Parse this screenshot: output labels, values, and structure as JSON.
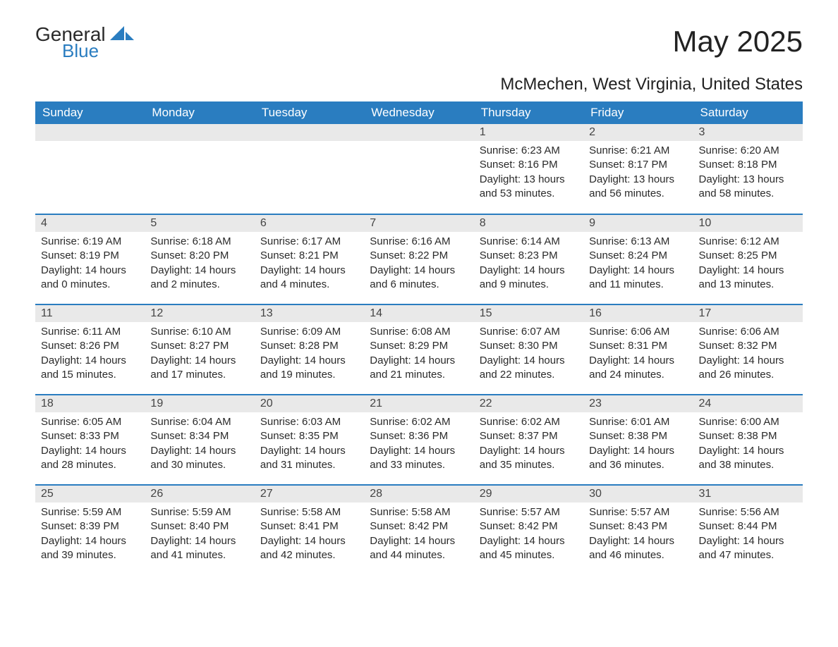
{
  "brand": {
    "word1": "General",
    "word2": "Blue"
  },
  "title": "May 2025",
  "location": "McMechen, West Virginia, United States",
  "colors": {
    "header_bg": "#2a7dc0",
    "header_text": "#ffffff",
    "daynum_bg": "#e9e9e9",
    "row_divider": "#2a7dc0",
    "body_text": "#2a2a2a",
    "page_bg": "#ffffff",
    "logo_accent": "#2a7dc0"
  },
  "fonts": {
    "title_size_pt": 42,
    "subtitle_size_pt": 24,
    "header_size_pt": 17,
    "body_size_pt": 15
  },
  "weekdays": [
    "Sunday",
    "Monday",
    "Tuesday",
    "Wednesday",
    "Thursday",
    "Friday",
    "Saturday"
  ],
  "weeks": [
    [
      null,
      null,
      null,
      null,
      {
        "n": "1",
        "sunrise": "6:23 AM",
        "sunset": "8:16 PM",
        "daylight": "13 hours and 53 minutes."
      },
      {
        "n": "2",
        "sunrise": "6:21 AM",
        "sunset": "8:17 PM",
        "daylight": "13 hours and 56 minutes."
      },
      {
        "n": "3",
        "sunrise": "6:20 AM",
        "sunset": "8:18 PM",
        "daylight": "13 hours and 58 minutes."
      }
    ],
    [
      {
        "n": "4",
        "sunrise": "6:19 AM",
        "sunset": "8:19 PM",
        "daylight": "14 hours and 0 minutes."
      },
      {
        "n": "5",
        "sunrise": "6:18 AM",
        "sunset": "8:20 PM",
        "daylight": "14 hours and 2 minutes."
      },
      {
        "n": "6",
        "sunrise": "6:17 AM",
        "sunset": "8:21 PM",
        "daylight": "14 hours and 4 minutes."
      },
      {
        "n": "7",
        "sunrise": "6:16 AM",
        "sunset": "8:22 PM",
        "daylight": "14 hours and 6 minutes."
      },
      {
        "n": "8",
        "sunrise": "6:14 AM",
        "sunset": "8:23 PM",
        "daylight": "14 hours and 9 minutes."
      },
      {
        "n": "9",
        "sunrise": "6:13 AM",
        "sunset": "8:24 PM",
        "daylight": "14 hours and 11 minutes."
      },
      {
        "n": "10",
        "sunrise": "6:12 AM",
        "sunset": "8:25 PM",
        "daylight": "14 hours and 13 minutes."
      }
    ],
    [
      {
        "n": "11",
        "sunrise": "6:11 AM",
        "sunset": "8:26 PM",
        "daylight": "14 hours and 15 minutes."
      },
      {
        "n": "12",
        "sunrise": "6:10 AM",
        "sunset": "8:27 PM",
        "daylight": "14 hours and 17 minutes."
      },
      {
        "n": "13",
        "sunrise": "6:09 AM",
        "sunset": "8:28 PM",
        "daylight": "14 hours and 19 minutes."
      },
      {
        "n": "14",
        "sunrise": "6:08 AM",
        "sunset": "8:29 PM",
        "daylight": "14 hours and 21 minutes."
      },
      {
        "n": "15",
        "sunrise": "6:07 AM",
        "sunset": "8:30 PM",
        "daylight": "14 hours and 22 minutes."
      },
      {
        "n": "16",
        "sunrise": "6:06 AM",
        "sunset": "8:31 PM",
        "daylight": "14 hours and 24 minutes."
      },
      {
        "n": "17",
        "sunrise": "6:06 AM",
        "sunset": "8:32 PM",
        "daylight": "14 hours and 26 minutes."
      }
    ],
    [
      {
        "n": "18",
        "sunrise": "6:05 AM",
        "sunset": "8:33 PM",
        "daylight": "14 hours and 28 minutes."
      },
      {
        "n": "19",
        "sunrise": "6:04 AM",
        "sunset": "8:34 PM",
        "daylight": "14 hours and 30 minutes."
      },
      {
        "n": "20",
        "sunrise": "6:03 AM",
        "sunset": "8:35 PM",
        "daylight": "14 hours and 31 minutes."
      },
      {
        "n": "21",
        "sunrise": "6:02 AM",
        "sunset": "8:36 PM",
        "daylight": "14 hours and 33 minutes."
      },
      {
        "n": "22",
        "sunrise": "6:02 AM",
        "sunset": "8:37 PM",
        "daylight": "14 hours and 35 minutes."
      },
      {
        "n": "23",
        "sunrise": "6:01 AM",
        "sunset": "8:38 PM",
        "daylight": "14 hours and 36 minutes."
      },
      {
        "n": "24",
        "sunrise": "6:00 AM",
        "sunset": "8:38 PM",
        "daylight": "14 hours and 38 minutes."
      }
    ],
    [
      {
        "n": "25",
        "sunrise": "5:59 AM",
        "sunset": "8:39 PM",
        "daylight": "14 hours and 39 minutes."
      },
      {
        "n": "26",
        "sunrise": "5:59 AM",
        "sunset": "8:40 PM",
        "daylight": "14 hours and 41 minutes."
      },
      {
        "n": "27",
        "sunrise": "5:58 AM",
        "sunset": "8:41 PM",
        "daylight": "14 hours and 42 minutes."
      },
      {
        "n": "28",
        "sunrise": "5:58 AM",
        "sunset": "8:42 PM",
        "daylight": "14 hours and 44 minutes."
      },
      {
        "n": "29",
        "sunrise": "5:57 AM",
        "sunset": "8:42 PM",
        "daylight": "14 hours and 45 minutes."
      },
      {
        "n": "30",
        "sunrise": "5:57 AM",
        "sunset": "8:43 PM",
        "daylight": "14 hours and 46 minutes."
      },
      {
        "n": "31",
        "sunrise": "5:56 AM",
        "sunset": "8:44 PM",
        "daylight": "14 hours and 47 minutes."
      }
    ]
  ],
  "labels": {
    "sunrise": "Sunrise: ",
    "sunset": "Sunset: ",
    "daylight": "Daylight: "
  }
}
